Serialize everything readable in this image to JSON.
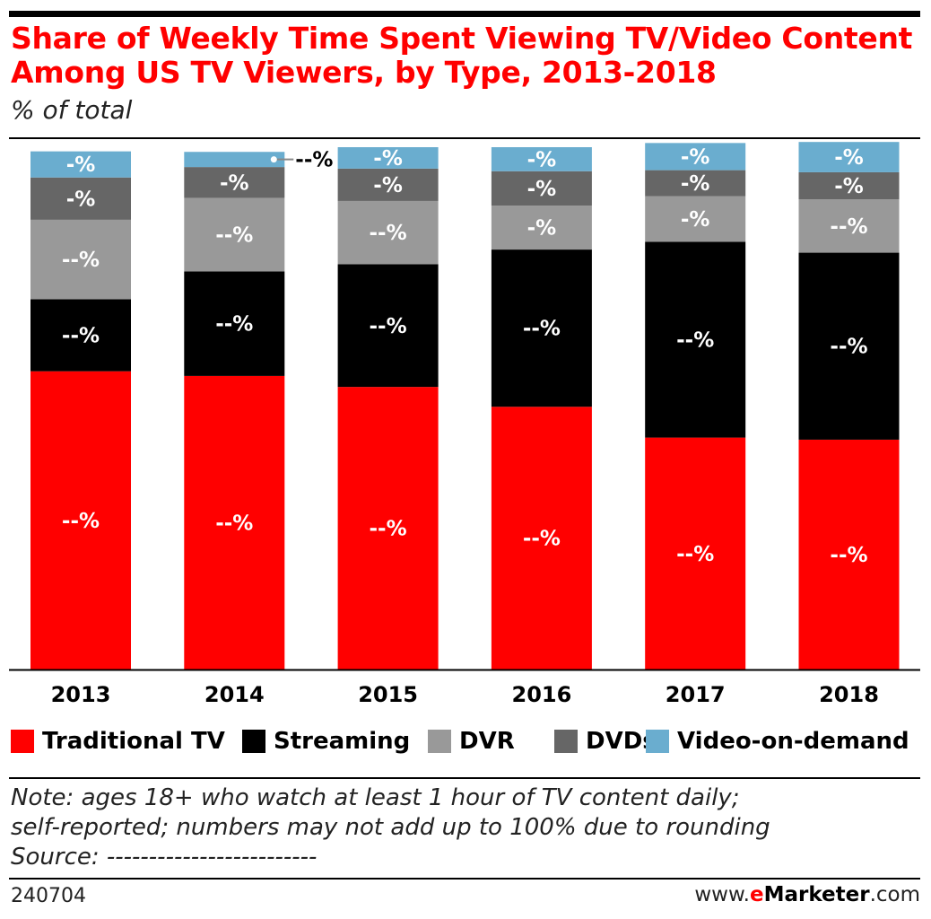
{
  "header": {
    "title": "Share of Weekly Time Spent Viewing TV/Video Content Among US TV Viewers, by Type, 2013-2018",
    "subtitle": "% of total"
  },
  "chart_data": {
    "type": "bar",
    "stacked": true,
    "categories": [
      "2013",
      "2014",
      "2015",
      "2016",
      "2017",
      "2018"
    ],
    "series": [
      {
        "name": "Traditional TV",
        "color": "#ff0000",
        "values": [
          57.1,
          56.2,
          54.1,
          50.3,
          44.4,
          44.0
        ],
        "labels": [
          "--%",
          "--%",
          "--%",
          "--%",
          "--%",
          "--%"
        ],
        "label_color": "#ffffff"
      },
      {
        "name": "Streaming",
        "color": "#000000",
        "values": [
          13.8,
          20.0,
          23.5,
          30.1,
          37.5,
          35.8
        ],
        "labels": [
          "--%",
          "--%",
          "--%",
          "--%",
          "--%",
          "--%"
        ],
        "label_color": "#ffffff"
      },
      {
        "name": "DVR",
        "color": "#999999",
        "values": [
          15.2,
          14.1,
          12.1,
          8.4,
          8.7,
          10.2
        ],
        "labels": [
          "--%",
          "--%",
          "--%",
          "-%",
          "-%",
          "--%"
        ],
        "label_color": "#ffffff"
      },
      {
        "name": "DVDs",
        "color": "#666666",
        "values": [
          8.1,
          5.9,
          6.2,
          6.6,
          5.0,
          5.2
        ],
        "labels": [
          "-%",
          "-%",
          "-%",
          "-%",
          "-%",
          "-%"
        ],
        "label_color": "#ffffff"
      },
      {
        "name": "Video-on-demand",
        "color": "#6aadcf",
        "values": [
          5.0,
          2.9,
          4.1,
          4.6,
          5.2,
          5.8
        ],
        "labels": [
          "-%",
          "--%",
          "-%",
          "-%",
          "-%",
          "-%"
        ],
        "label_color": "#ffffff",
        "callout_index": 1
      }
    ],
    "ylim": [
      0,
      100
    ],
    "xlabel": "",
    "ylabel": "",
    "grid": false,
    "legend": "bottom"
  },
  "note": {
    "line1": "Note: ages 18+ who watch at least 1 hour of TV content daily;",
    "line2": "self-reported; numbers may not add up to 100% due to rounding",
    "line3": "Source: -------------------------"
  },
  "footer": {
    "chart_id": "240704",
    "site_prefix": "www.",
    "site_brand_e": "e",
    "site_brand_rest": "Marketer",
    "site_suffix": ".com"
  }
}
